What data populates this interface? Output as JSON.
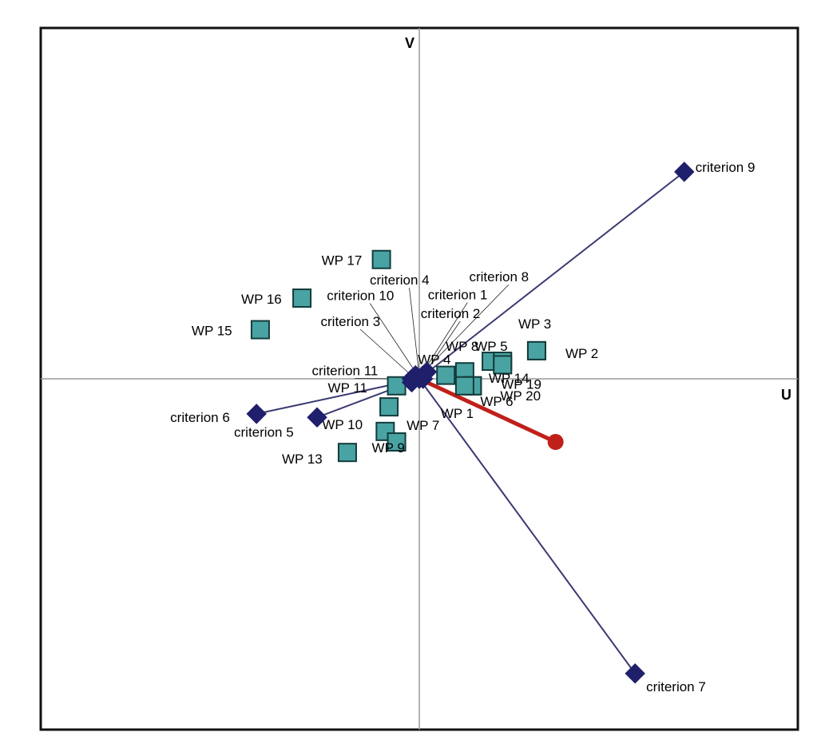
{
  "chart_data": {
    "type": "scatter",
    "title": "",
    "xlabel": "U",
    "ylabel": "V",
    "xlim": [
      -1,
      1
    ],
    "ylim": [
      -1,
      1
    ],
    "grid": false,
    "colors": {
      "criterion": "#1f1f6b",
      "criterion_line": "#3a3a72",
      "alternative_fill": "#4aa3a3",
      "alternative_stroke": "#123c3c",
      "decision_axis": "#c0201a",
      "axis": "#9a9a9a"
    },
    "criteria": [
      {
        "label": "criterion 9",
        "x": 0.7,
        "y": 0.59
      },
      {
        "label": "criterion 7",
        "x": 0.57,
        "y": -0.84
      },
      {
        "label": "criterion 6",
        "x": -0.43,
        "y": -0.1
      },
      {
        "label": "criterion 5",
        "x": -0.27,
        "y": -0.11
      },
      {
        "label": "criterion 4",
        "x": 0.0,
        "y": 0.0
      },
      {
        "label": "criterion 8",
        "x": 0.02,
        "y": 0.02
      },
      {
        "label": "criterion 10",
        "x": -0.01,
        "y": 0.01
      },
      {
        "label": "criterion 1",
        "x": 0.01,
        "y": 0.01
      },
      {
        "label": "criterion 3",
        "x": -0.02,
        "y": 0.0
      },
      {
        "label": "criterion 2",
        "x": 0.01,
        "y": 0.0
      },
      {
        "label": "criterion 11",
        "x": -0.02,
        "y": -0.01
      }
    ],
    "alternatives": [
      {
        "label": "WP 17",
        "x": -0.1,
        "y": 0.34
      },
      {
        "label": "WP 16",
        "x": -0.31,
        "y": 0.23
      },
      {
        "label": "WP 15",
        "x": -0.42,
        "y": 0.14
      },
      {
        "label": "WP 3",
        "x": 0.31,
        "y": 0.08
      },
      {
        "label": "WP 8",
        "x": 0.19,
        "y": 0.05
      },
      {
        "label": "WP 5",
        "x": 0.22,
        "y": 0.05
      },
      {
        "label": "WP 2",
        "x": 0.31,
        "y": 0.08
      },
      {
        "label": "WP 19",
        "x": 0.22,
        "y": 0.04
      },
      {
        "label": "WP 4",
        "x": 0.07,
        "y": 0.01
      },
      {
        "label": "WP 14",
        "x": 0.12,
        "y": 0.02
      },
      {
        "label": "WP 20",
        "x": 0.14,
        "y": -0.02
      },
      {
        "label": "WP 6",
        "x": 0.14,
        "y": -0.02
      },
      {
        "label": "WP 11",
        "x": -0.06,
        "y": -0.02
      },
      {
        "label": "WP 7",
        "x": -0.08,
        "y": -0.08
      },
      {
        "label": "WP 1",
        "x": 0.12,
        "y": -0.02
      },
      {
        "label": "WP 10",
        "x": -0.09,
        "y": -0.15
      },
      {
        "label": "WP 9",
        "x": -0.06,
        "y": -0.18
      },
      {
        "label": "WP 13",
        "x": -0.19,
        "y": -0.21
      }
    ],
    "decision_axis": {
      "x": 0.36,
      "y": -0.18
    }
  }
}
